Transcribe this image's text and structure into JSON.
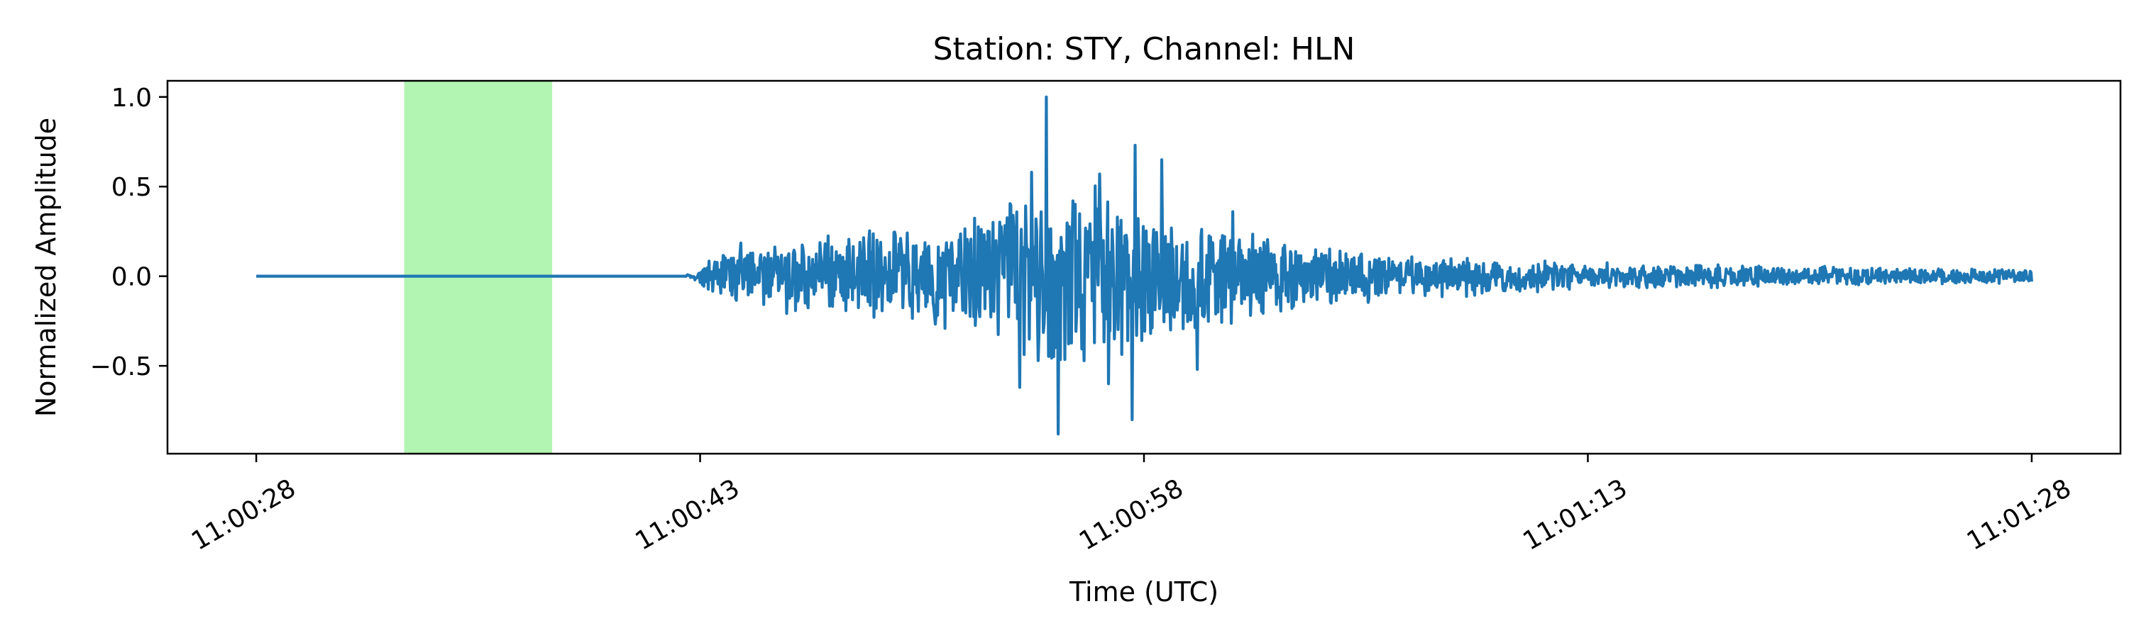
{
  "chart_data": {
    "type": "line",
    "title": "Station: STY, Channel: HLN",
    "xlabel": "Time (UTC)",
    "ylabel": "Normalized Amplitude",
    "x_unit": "time (UTC)",
    "xlim": [
      "11:00:25",
      "11:01:31"
    ],
    "ylim": [
      -0.99,
      1.09
    ],
    "grid": false,
    "x_ticks": [
      "11:00:28",
      "11:00:43",
      "11:00:58",
      "11:01:13",
      "11:01:28"
    ],
    "y_ticks": [
      1.0,
      0.5,
      0.0,
      -0.5
    ],
    "y_tick_labels": [
      "1.0",
      "0.5",
      "0.0",
      "−0.5"
    ],
    "highlight_span": {
      "start": "11:00:33",
      "end": "11:00:38",
      "color": "#b2f5b2"
    },
    "series": [
      {
        "color": "#1f77b4",
        "x_start": "11:00:28",
        "x_end": "11:01:28",
        "signal_onset": "11:00:42.5",
        "peak": {
          "time": "11:00:54.7",
          "value": 1.0
        },
        "min": {
          "time": "11:00:55.1",
          "value": -0.88
        },
        "envelope": [
          {
            "time": "11:00:28",
            "amplitude": 0.0
          },
          {
            "time": "11:00:42.5",
            "amplitude": 0.0
          },
          {
            "time": "11:00:44",
            "amplitude": 0.18
          },
          {
            "time": "11:00:48",
            "amplitude": 0.25
          },
          {
            "time": "11:00:52",
            "amplitude": 0.35
          },
          {
            "time": "11:00:54",
            "amplitude": 0.55
          },
          {
            "time": "11:00:56",
            "amplitude": 0.6
          },
          {
            "time": "11:00:58",
            "amplitude": 0.4
          },
          {
            "time": "11:01:02",
            "amplitude": 0.25
          },
          {
            "time": "11:01:06",
            "amplitude": 0.14
          },
          {
            "time": "11:01:13",
            "amplitude": 0.08
          },
          {
            "time": "11:01:20",
            "amplitude": 0.06
          },
          {
            "time": "11:01:28",
            "amplitude": 0.04
          }
        ],
        "spikes": [
          {
            "time": "11:00:54.7",
            "value": 1.0
          },
          {
            "time": "11:00:55.1",
            "value": -0.88
          },
          {
            "time": "11:00:57.7",
            "value": 0.73
          },
          {
            "time": "11:00:57.6",
            "value": -0.8
          },
          {
            "time": "11:00:53.8",
            "value": -0.62
          },
          {
            "time": "11:00:54.2",
            "value": 0.58
          },
          {
            "time": "11:00:56.5",
            "value": 0.57
          },
          {
            "time": "11:00:56.8",
            "value": -0.6
          },
          {
            "time": "11:00:58.6",
            "value": 0.65
          },
          {
            "time": "11:00:59.8",
            "value": -0.52
          },
          {
            "time": "11:00:55.6",
            "value": 0.42
          },
          {
            "time": "11:01:01",
            "value": 0.36
          }
        ]
      }
    ]
  }
}
